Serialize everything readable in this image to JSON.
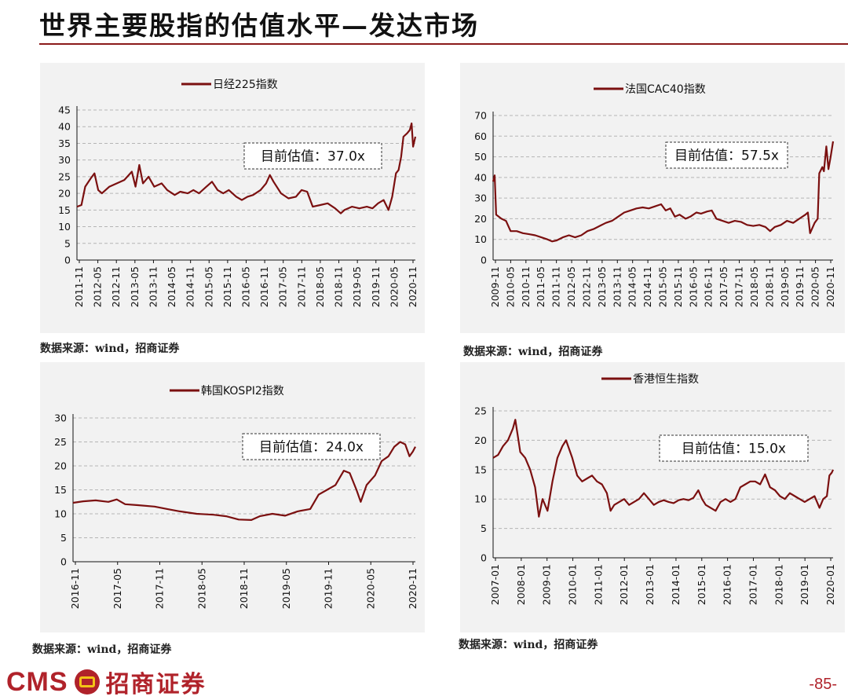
{
  "page": {
    "title": "世界主要股指的估值水平—发达市场",
    "page_number": "-85-",
    "logo_latin": "CMS",
    "logo_cn": "招商证券"
  },
  "colors": {
    "accent": "#8b1a1a",
    "line": "#7b1010",
    "panel_bg": "#f2f2f2"
  },
  "chart_data": [
    {
      "type": "line",
      "legend": "日经225指数",
      "annotation": "目前估值：37.0x",
      "source": "数据来源：wind，招商证券",
      "ylim": [
        0,
        45
      ],
      "yticks": [
        0,
        5,
        10,
        15,
        20,
        25,
        30,
        35,
        40,
        45
      ],
      "xlabels": [
        "2011-11",
        "2012-05",
        "2012-11",
        "2013-05",
        "2013-11",
        "2014-05",
        "2014-11",
        "2015-05",
        "2015-11",
        "2016-05",
        "2016-11",
        "2017-05",
        "2017-11",
        "2018-05",
        "2018-11",
        "2019-05",
        "2019-11",
        "2020-05",
        "2020-11"
      ],
      "x_start": 2011.83,
      "x_end": 2020.9,
      "series": [
        {
          "points": [
            [
              2011.83,
              16
            ],
            [
              2011.95,
              16.5
            ],
            [
              2012.05,
              22
            ],
            [
              2012.2,
              24.5
            ],
            [
              2012.3,
              26
            ],
            [
              2012.4,
              21
            ],
            [
              2012.5,
              20
            ],
            [
              2012.7,
              22
            ],
            [
              2012.9,
              23
            ],
            [
              2013.1,
              24
            ],
            [
              2013.3,
              26.5
            ],
            [
              2013.4,
              22
            ],
            [
              2013.5,
              28.5
            ],
            [
              2013.6,
              23
            ],
            [
              2013.75,
              25
            ],
            [
              2013.9,
              22
            ],
            [
              2014.1,
              23
            ],
            [
              2014.25,
              21
            ],
            [
              2014.45,
              19.5
            ],
            [
              2014.6,
              20.5
            ],
            [
              2014.8,
              20
            ],
            [
              2014.95,
              21
            ],
            [
              2015.1,
              20
            ],
            [
              2015.3,
              22
            ],
            [
              2015.45,
              23.5
            ],
            [
              2015.6,
              21
            ],
            [
              2015.75,
              20
            ],
            [
              2015.9,
              21
            ],
            [
              2016.1,
              19
            ],
            [
              2016.25,
              18
            ],
            [
              2016.4,
              19
            ],
            [
              2016.55,
              19.5
            ],
            [
              2016.75,
              21
            ],
            [
              2016.9,
              23
            ],
            [
              2017.0,
              25.5
            ],
            [
              2017.1,
              23.5
            ],
            [
              2017.3,
              20
            ],
            [
              2017.5,
              18.5
            ],
            [
              2017.7,
              19
            ],
            [
              2017.85,
              21
            ],
            [
              2018.0,
              20.5
            ],
            [
              2018.15,
              16
            ],
            [
              2018.35,
              16.5
            ],
            [
              2018.55,
              17
            ],
            [
              2018.75,
              15.5
            ],
            [
              2018.9,
              14
            ],
            [
              2019.0,
              15
            ],
            [
              2019.2,
              16
            ],
            [
              2019.4,
              15.5
            ],
            [
              2019.6,
              16
            ],
            [
              2019.75,
              15.5
            ],
            [
              2019.9,
              17
            ],
            [
              2020.05,
              18
            ],
            [
              2020.18,
              15
            ],
            [
              2020.28,
              19
            ],
            [
              2020.38,
              26
            ],
            [
              2020.45,
              27
            ],
            [
              2020.52,
              31
            ],
            [
              2020.58,
              37
            ],
            [
              2020.68,
              38
            ],
            [
              2020.75,
              39
            ],
            [
              2020.8,
              41
            ],
            [
              2020.84,
              34
            ],
            [
              2020.9,
              37
            ]
          ]
        }
      ]
    },
    {
      "type": "line",
      "legend": "法国CAC40指数",
      "annotation": "目前估值：57.5x",
      "source": "数据来源：wind，招商证券",
      "ylim": [
        0,
        70
      ],
      "yticks": [
        0,
        10,
        20,
        30,
        40,
        50,
        60,
        70
      ],
      "xlabels": [
        "2009-11",
        "2010-05",
        "2010-11",
        "2011-05",
        "2011-11",
        "2012-05",
        "2012-11",
        "2013-05",
        "2013-11",
        "2014-05",
        "2014-11",
        "2015-05",
        "2015-11",
        "2016-05",
        "2016-11",
        "2017-05",
        "2017-11",
        "2018-05",
        "2018-11",
        "2019-05",
        "2019-11",
        "2020-05",
        "2020-11"
      ],
      "x_start": 2009.83,
      "x_end": 2020.9,
      "series": [
        {
          "points": [
            [
              2009.83,
              38
            ],
            [
              2009.88,
              41
            ],
            [
              2009.93,
              22
            ],
            [
              2010.1,
              20
            ],
            [
              2010.25,
              19
            ],
            [
              2010.4,
              14
            ],
            [
              2010.6,
              14
            ],
            [
              2010.8,
              13
            ],
            [
              2011.0,
              12.5
            ],
            [
              2011.2,
              12
            ],
            [
              2011.4,
              11
            ],
            [
              2011.6,
              10
            ],
            [
              2011.75,
              9
            ],
            [
              2011.9,
              9.5
            ],
            [
              2012.1,
              11
            ],
            [
              2012.3,
              12
            ],
            [
              2012.5,
              11
            ],
            [
              2012.7,
              12
            ],
            [
              2012.9,
              14
            ],
            [
              2013.1,
              15
            ],
            [
              2013.3,
              16.5
            ],
            [
              2013.5,
              18
            ],
            [
              2013.7,
              19
            ],
            [
              2013.9,
              21
            ],
            [
              2014.1,
              23
            ],
            [
              2014.3,
              24
            ],
            [
              2014.5,
              25
            ],
            [
              2014.7,
              25.5
            ],
            [
              2014.9,
              25
            ],
            [
              2015.1,
              26
            ],
            [
              2015.3,
              27
            ],
            [
              2015.45,
              24
            ],
            [
              2015.6,
              25
            ],
            [
              2015.75,
              21
            ],
            [
              2015.9,
              22
            ],
            [
              2016.1,
              20
            ],
            [
              2016.25,
              21
            ],
            [
              2016.45,
              23
            ],
            [
              2016.6,
              22.5
            ],
            [
              2016.8,
              23.5
            ],
            [
              2016.95,
              24
            ],
            [
              2017.1,
              20
            ],
            [
              2017.3,
              19
            ],
            [
              2017.5,
              18
            ],
            [
              2017.7,
              19
            ],
            [
              2017.9,
              18.5
            ],
            [
              2018.1,
              17
            ],
            [
              2018.3,
              16.5
            ],
            [
              2018.5,
              17
            ],
            [
              2018.7,
              16
            ],
            [
              2018.85,
              14
            ],
            [
              2019.0,
              16
            ],
            [
              2019.2,
              17
            ],
            [
              2019.4,
              19
            ],
            [
              2019.6,
              18
            ],
            [
              2019.8,
              20
            ],
            [
              2020.0,
              22
            ],
            [
              2020.08,
              23
            ],
            [
              2020.15,
              13
            ],
            [
              2020.3,
              18
            ],
            [
              2020.4,
              20
            ],
            [
              2020.45,
              42
            ],
            [
              2020.55,
              45
            ],
            [
              2020.6,
              43
            ],
            [
              2020.68,
              55
            ],
            [
              2020.75,
              44
            ],
            [
              2020.82,
              50
            ],
            [
              2020.9,
              57.5
            ]
          ]
        }
      ]
    },
    {
      "type": "line",
      "legend": "韩国KOSPI2指数",
      "annotation": "目前估值：24.0x",
      "source": "数据来源：wind，招商证券",
      "ylim": [
        0,
        30
      ],
      "yticks": [
        0,
        5,
        10,
        15,
        20,
        25,
        30
      ],
      "xlabels": [
        "2016-11",
        "2017-05",
        "2017-11",
        "2018-05",
        "2018-11",
        "2019-05",
        "2019-11",
        "2020-05",
        "2020-11"
      ],
      "x_start": 2016.83,
      "x_end": 2020.9,
      "series": [
        {
          "points": [
            [
              2016.83,
              12.3
            ],
            [
              2016.95,
              12.6
            ],
            [
              2017.1,
              12.8
            ],
            [
              2017.25,
              12.5
            ],
            [
              2017.35,
              13
            ],
            [
              2017.45,
              12
            ],
            [
              2017.6,
              11.8
            ],
            [
              2017.8,
              11.5
            ],
            [
              2017.95,
              11
            ],
            [
              2018.1,
              10.5
            ],
            [
              2018.3,
              10
            ],
            [
              2018.5,
              9.8
            ],
            [
              2018.65,
              9.5
            ],
            [
              2018.8,
              8.8
            ],
            [
              2018.95,
              8.7
            ],
            [
              2019.05,
              9.5
            ],
            [
              2019.2,
              10
            ],
            [
              2019.35,
              9.6
            ],
            [
              2019.5,
              10.5
            ],
            [
              2019.65,
              11
            ],
            [
              2019.75,
              14
            ],
            [
              2019.85,
              15
            ],
            [
              2019.95,
              16
            ],
            [
              2020.05,
              19
            ],
            [
              2020.12,
              18.5
            ],
            [
              2020.2,
              15
            ],
            [
              2020.25,
              12.5
            ],
            [
              2020.32,
              16
            ],
            [
              2020.42,
              18
            ],
            [
              2020.5,
              21
            ],
            [
              2020.58,
              22
            ],
            [
              2020.65,
              24
            ],
            [
              2020.72,
              25
            ],
            [
              2020.78,
              24.5
            ],
            [
              2020.83,
              22
            ],
            [
              2020.87,
              23
            ],
            [
              2020.9,
              24
            ]
          ]
        }
      ]
    },
    {
      "type": "line",
      "legend": "香港恒生指数",
      "annotation": "目前估值：15.0x",
      "source": "数据来源：wind，招商证券",
      "ylim": [
        0,
        25
      ],
      "yticks": [
        0,
        5,
        10,
        15,
        20,
        25
      ],
      "xlabels": [
        "2007-01",
        "2008-01",
        "2009-01",
        "2010-01",
        "2011-01",
        "2012-01",
        "2013-01",
        "2014-01",
        "2015-01",
        "2016-01",
        "2017-01",
        "2018-01",
        "2019-01",
        "2020-01"
      ],
      "x_start": 2007.0,
      "x_end": 2020.75,
      "series": [
        {
          "points": [
            [
              2007.0,
              17
            ],
            [
              2007.2,
              17.5
            ],
            [
              2007.4,
              19
            ],
            [
              2007.6,
              20
            ],
            [
              2007.8,
              22
            ],
            [
              2007.9,
              23.5
            ],
            [
              2008.1,
              18
            ],
            [
              2008.3,
              17
            ],
            [
              2008.5,
              15
            ],
            [
              2008.7,
              12
            ],
            [
              2008.85,
              7
            ],
            [
              2009.0,
              10
            ],
            [
              2009.2,
              8
            ],
            [
              2009.4,
              13
            ],
            [
              2009.6,
              17
            ],
            [
              2009.8,
              19
            ],
            [
              2009.95,
              20
            ],
            [
              2010.2,
              17
            ],
            [
              2010.4,
              14
            ],
            [
              2010.6,
              13
            ],
            [
              2010.8,
              13.5
            ],
            [
              2011.0,
              14
            ],
            [
              2011.2,
              13
            ],
            [
              2011.4,
              12.5
            ],
            [
              2011.6,
              11
            ],
            [
              2011.75,
              8
            ],
            [
              2011.9,
              9
            ],
            [
              2012.1,
              9.5
            ],
            [
              2012.3,
              10
            ],
            [
              2012.5,
              9
            ],
            [
              2012.7,
              9.5
            ],
            [
              2012.9,
              10
            ],
            [
              2013.1,
              11
            ],
            [
              2013.3,
              10
            ],
            [
              2013.5,
              9
            ],
            [
              2013.7,
              9.5
            ],
            [
              2013.9,
              9.8
            ],
            [
              2014.1,
              9.5
            ],
            [
              2014.3,
              9.3
            ],
            [
              2014.5,
              9.8
            ],
            [
              2014.7,
              10
            ],
            [
              2014.9,
              9.8
            ],
            [
              2015.1,
              10.2
            ],
            [
              2015.3,
              11.5
            ],
            [
              2015.45,
              10
            ],
            [
              2015.6,
              9
            ],
            [
              2015.8,
              8.5
            ],
            [
              2016.0,
              8
            ],
            [
              2016.2,
              9.5
            ],
            [
              2016.4,
              10
            ],
            [
              2016.6,
              9.5
            ],
            [
              2016.8,
              10
            ],
            [
              2017.0,
              12
            ],
            [
              2017.2,
              12.5
            ],
            [
              2017.4,
              13
            ],
            [
              2017.6,
              13
            ],
            [
              2017.8,
              12.5
            ],
            [
              2018.0,
              14.2
            ],
            [
              2018.2,
              12
            ],
            [
              2018.4,
              11.5
            ],
            [
              2018.6,
              10.5
            ],
            [
              2018.8,
              10
            ],
            [
              2019.0,
              11
            ],
            [
              2019.2,
              10.5
            ],
            [
              2019.4,
              10
            ],
            [
              2019.6,
              9.5
            ],
            [
              2019.8,
              10
            ],
            [
              2020.0,
              10.5
            ],
            [
              2020.2,
              8.5
            ],
            [
              2020.35,
              10
            ],
            [
              2020.5,
              10.5
            ],
            [
              2020.6,
              14
            ],
            [
              2020.7,
              14.5
            ],
            [
              2020.75,
              15
            ]
          ]
        }
      ]
    }
  ]
}
